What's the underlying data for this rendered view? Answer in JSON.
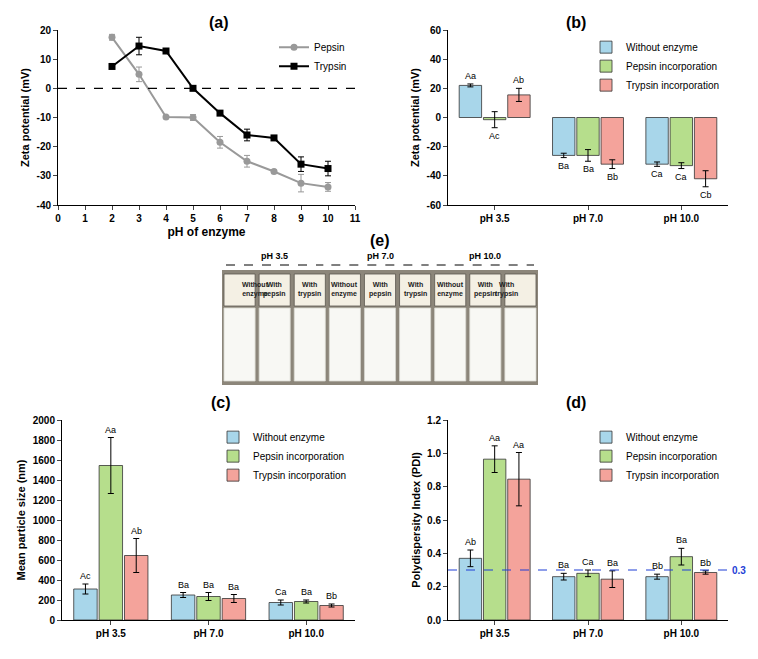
{
  "chart_data": [
    {
      "label": "(a)",
      "type": "line",
      "x": [
        2,
        3,
        4,
        5,
        6,
        7,
        8,
        9,
        10
      ],
      "xlabel": "pH of enzyme",
      "ylabel": "Zeta potential (mV)",
      "xlim": [
        0,
        11
      ],
      "xticks": [
        0,
        1,
        2,
        3,
        4,
        5,
        6,
        7,
        8,
        9,
        10,
        11
      ],
      "ylim": [
        -40,
        20
      ],
      "yticks": [
        -40,
        -30,
        -20,
        -10,
        0,
        10,
        20
      ],
      "grid": false,
      "legend": "top right",
      "series": [
        {
          "name": "Pepsin",
          "color": "#999999",
          "marker": "circle",
          "values": [
            17.5,
            4.8,
            -9.8,
            -10,
            -18.5,
            -25,
            -28.5,
            -32.5,
            -33.8
          ],
          "errors": [
            1,
            2.5,
            0.5,
            1,
            2,
            2,
            0.5,
            3,
            1.5
          ]
        },
        {
          "name": "Trypsin",
          "color": "#000000",
          "marker": "square",
          "values": [
            7.5,
            14.5,
            12.8,
            0,
            -8.5,
            -16,
            -17,
            -26,
            -27.5
          ],
          "errors": [
            0.5,
            3,
            0.5,
            0.5,
            0.5,
            2,
            0.5,
            2.5,
            2.5
          ]
        }
      ],
      "reference_lines": [
        {
          "value": 0,
          "color": "#000000",
          "line_style": "dashed"
        }
      ]
    },
    {
      "label": "(b)",
      "type": "bar",
      "categories": [
        "pH 3.5",
        "pH 7.0",
        "pH 10.0"
      ],
      "ylabel": "Zeta potential (mV)",
      "ylim": [
        -60,
        60
      ],
      "yticks": [
        -60,
        -40,
        -20,
        0,
        20,
        40,
        60
      ],
      "grid": false,
      "legend": "top right",
      "series": [
        {
          "name": "Without enzyme",
          "color": "#a8d6ea",
          "values": [
            22,
            -26,
            -32
          ],
          "errors": [
            1,
            1.5,
            1.5
          ],
          "letters": [
            "Aa",
            "Ba",
            "Ca"
          ]
        },
        {
          "name": "Pepsin incorporation",
          "color": "#b6de8c",
          "values": [
            -1.5,
            -26,
            -33
          ],
          "errors": [
            5.5,
            4,
            2
          ],
          "letters": [
            "Ac",
            "Ba",
            "Ca"
          ]
        },
        {
          "name": "Trypsin incorporation",
          "color": "#f4a39b",
          "values": [
            15.5,
            -32,
            -42
          ],
          "errors": [
            4.5,
            3,
            5.5
          ],
          "letters": [
            "Ab",
            "Bb",
            "Cb"
          ]
        }
      ]
    },
    {
      "label": "(c)",
      "type": "bar",
      "categories": [
        "pH 3.5",
        "pH 7.0",
        "pH 10.0"
      ],
      "ylabel": "Mean particle size (nm)",
      "ylim": [
        0,
        2000
      ],
      "yticks": [
        0,
        200,
        400,
        600,
        800,
        1000,
        1200,
        1400,
        1600,
        1800,
        2000
      ],
      "grid": false,
      "legend": "top right",
      "series": [
        {
          "name": "Without enzyme",
          "color": "#a8d6ea",
          "values": [
            310,
            250,
            175
          ],
          "errors": [
            50,
            25,
            25
          ],
          "letters": [
            "Ac",
            "Ba",
            "Ca"
          ]
        },
        {
          "name": "Pepsin incorporation",
          "color": "#b6de8c",
          "values": [
            1545,
            235,
            185
          ],
          "errors": [
            280,
            40,
            15
          ],
          "letters": [
            "Aa",
            "Ba",
            "Ba"
          ]
        },
        {
          "name": "Trypsin incorporation",
          "color": "#f4a39b",
          "values": [
            645,
            215,
            145
          ],
          "errors": [
            170,
            40,
            15
          ],
          "letters": [
            "Ab",
            "Ba",
            "Bb"
          ]
        }
      ]
    },
    {
      "label": "(d)",
      "type": "bar",
      "categories": [
        "pH 3.5",
        "pH 7.0",
        "pH 10.0"
      ],
      "ylabel": "Polydispersity Index (PDI)",
      "ylim": [
        0,
        1.2
      ],
      "yticks": [
        {
          "value": 0,
          "label": "0.0"
        },
        0.2,
        0.4,
        0.6,
        0.8,
        {
          "value": 1,
          "label": "1.0"
        },
        1.2
      ],
      "grid": false,
      "legend": "top right",
      "series": [
        {
          "name": "Without enzyme",
          "color": "#a8d6ea",
          "values": [
            0.37,
            0.26,
            0.26
          ],
          "errors": [
            0.05,
            0.02,
            0.015
          ],
          "letters": [
            "Ab",
            "Ba",
            "Bb"
          ]
        },
        {
          "name": "Pepsin incorporation",
          "color": "#b6de8c",
          "values": [
            0.965,
            0.28,
            0.38
          ],
          "errors": [
            0.08,
            0.02,
            0.05
          ],
          "letters": [
            "Aa",
            "Ca",
            "Ba"
          ]
        },
        {
          "name": "Trypsin incorporation",
          "color": "#f4a39b",
          "values": [
            0.845,
            0.245,
            0.285
          ],
          "errors": [
            0.16,
            0.05,
            0.01
          ],
          "letters": [
            "Aa",
            "Ba",
            "Bb"
          ]
        }
      ],
      "reference_lines": [
        {
          "value": 0.3,
          "label": "0.3",
          "color": "#1f3fd6",
          "line_style": "dashed"
        }
      ]
    }
  ],
  "photo": {
    "label": "(e)",
    "groups": [
      {
        "title": "pH 3.5",
        "vials": [
          "Without enzyme",
          "With pepsin",
          "With trypsin"
        ]
      },
      {
        "title": "pH 7.0",
        "vials": [
          "Without enzyme",
          "With pepsin",
          "With trypsin"
        ]
      },
      {
        "title": "pH 10.0",
        "vials": [
          "Without enzyme",
          "With pepsin",
          "With trypsin"
        ]
      }
    ]
  }
}
